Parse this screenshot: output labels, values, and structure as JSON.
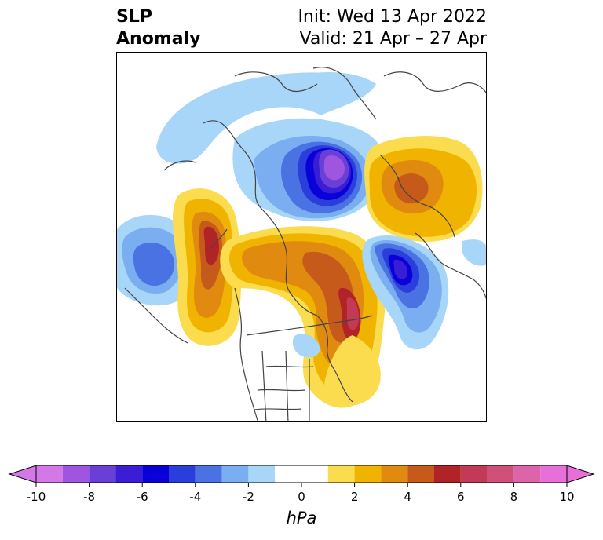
{
  "title": {
    "left_line1": "SLP",
    "left_line2": "Anomaly",
    "right_line1": "Init: Wed 13 Apr 2022",
    "right_line2": "Valid: 21 Apr – 27 Apr"
  },
  "colorbar": {
    "unit": "hPa",
    "tick_labels": [
      "-10",
      "-8",
      "-6",
      "-4",
      "-2",
      "0",
      "2",
      "4",
      "6",
      "8",
      "10"
    ],
    "tick_values": [
      -10,
      -8,
      -6,
      -4,
      -2,
      0,
      2,
      4,
      6,
      8,
      10
    ],
    "extend": "both",
    "negative_colors": [
      "#d478e8",
      "#9f55df",
      "#6a3fd8",
      "#3a1ed6",
      "#0a00d8",
      "#2a3edb",
      "#4a72e3",
      "#7aaef0",
      "#a8d6f8"
    ],
    "neutral_color": "#ffffff",
    "positive_colors": [
      "#fbdc4e",
      "#f0b400",
      "#e08a10",
      "#c65a1a",
      "#b02428",
      "#c23a55",
      "#d1507a",
      "#dc64a8",
      "#e670d8"
    ]
  }
}
